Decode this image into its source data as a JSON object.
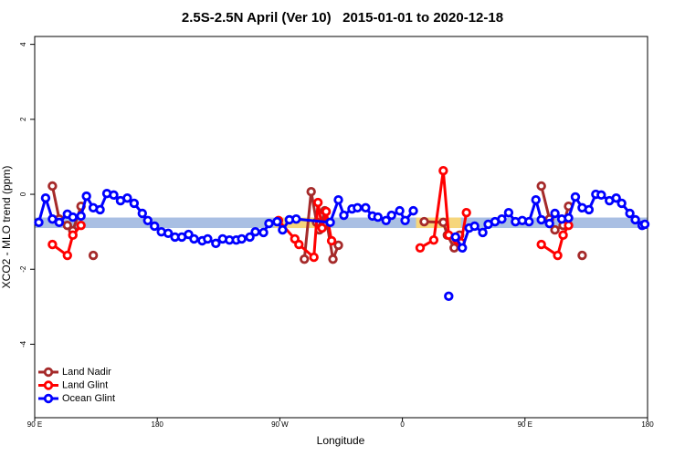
{
  "chart_data": {
    "type": "line",
    "title": "2.5S-2.5N April (Ver 10)   2015-01-01 to 2020-12-18",
    "x_label": "Longitude",
    "y_label": "XCO2 - MLO trend (ppm)",
    "xlim": [
      90,
      540
    ],
    "ylim": [
      -5.96,
      4.21
    ],
    "xticks": [
      {
        "value": 90,
        "label": "90 E"
      },
      {
        "value": 180,
        "label": "180"
      },
      {
        "value": 270,
        "label": "90 W"
      },
      {
        "value": 360,
        "label": "0"
      },
      {
        "value": 450,
        "label": "90 E"
      },
      {
        "value": 540,
        "label": "180"
      }
    ],
    "yticks": [
      -4,
      -2,
      0,
      2,
      4
    ],
    "reference_band": {
      "range": [
        -0.9,
        -0.62
      ],
      "color": "#a9bfe3"
    },
    "highlight_bands": {
      "color": "#f6d67c",
      "ranges": [
        [
          266,
          299
        ],
        [
          370,
          403
        ]
      ]
    },
    "legend": "bottom-left",
    "series": [
      {
        "name": "Land Nadir",
        "color": "#a52a2a",
        "x": [
          103,
          108,
          114,
          118,
          124,
          128,
          133,
          250,
          288,
          293,
          297,
          299,
          303,
          309,
          313,
          345,
          376,
          390,
          393,
          398,
          402,
          430,
          462,
          468,
          472,
          478,
          482,
          487,
          492
        ],
        "values": [
          0.22,
          -0.66,
          -0.83,
          -0.97,
          -0.32,
          null,
          -1.63,
          null,
          -1.73,
          0.07,
          -0.75,
          -0.95,
          -0.44,
          -1.73,
          -1.36,
          null,
          -0.73,
          -0.75,
          -1.09,
          -1.43,
          -1.09,
          null,
          0.22,
          -0.66,
          -0.95,
          -0.83,
          -0.32,
          null,
          -1.63
        ]
      },
      {
        "name": "Land Glint",
        "color": "#ff0000",
        "x": [
          103,
          114,
          118,
          124,
          200,
          269,
          281,
          284,
          295,
          298,
          301,
          304,
          308,
          340,
          373,
          383,
          390,
          394,
          400,
          403,
          407,
          430,
          462,
          474,
          478,
          482
        ],
        "values": [
          -1.34,
          -1.63,
          -1.09,
          -0.83,
          null,
          -0.7,
          -1.19,
          -1.34,
          -1.68,
          -0.22,
          -0.9,
          -0.46,
          -1.24,
          null,
          -1.43,
          -1.22,
          0.63,
          -1.09,
          -1.22,
          -1.29,
          -0.49,
          null,
          -1.34,
          -1.63,
          -1.09,
          -0.83
        ]
      },
      {
        "name": "Ocean Glint",
        "color": "#0000ff",
        "x": [
          93,
          98,
          103,
          108,
          114,
          118,
          124,
          128,
          133,
          138,
          143,
          148,
          153,
          158,
          163,
          169,
          173,
          178,
          183,
          188,
          193,
          198,
          203,
          207,
          213,
          217,
          223,
          228,
          233,
          238,
          242,
          248,
          252,
          258,
          262,
          268,
          272,
          277,
          282,
          307,
          313,
          317,
          323,
          327,
          333,
          338,
          342,
          348,
          352,
          358,
          362,
          368,
          380,
          394,
          396,
          399,
          404,
          409,
          413,
          419,
          423,
          428,
          433,
          438,
          443,
          448,
          453,
          458,
          462,
          468,
          472,
          477,
          482,
          487,
          492,
          497,
          502,
          506,
          512,
          517,
          521,
          527,
          531,
          536,
          538
        ],
        "values": [
          -0.75,
          -0.1,
          -0.66,
          -0.75,
          -0.53,
          -0.61,
          -0.58,
          -0.05,
          -0.36,
          -0.41,
          0.02,
          -0.02,
          -0.17,
          -0.1,
          -0.24,
          -0.51,
          -0.7,
          -0.85,
          -1.0,
          -1.04,
          -1.14,
          -1.14,
          -1.07,
          -1.19,
          -1.24,
          -1.19,
          -1.31,
          -1.19,
          -1.22,
          -1.22,
          -1.19,
          -1.14,
          -1.0,
          -1.02,
          -0.78,
          -0.73,
          -0.95,
          -0.68,
          -0.66,
          -0.75,
          -0.15,
          -0.56,
          -0.39,
          -0.36,
          -0.36,
          -0.58,
          -0.61,
          -0.7,
          -0.56,
          -0.44,
          -0.7,
          -0.44,
          null,
          -2.72,
          null,
          -1.14,
          -1.43,
          -0.9,
          -0.85,
          -1.02,
          -0.8,
          -0.73,
          -0.66,
          -0.49,
          -0.73,
          -0.7,
          -0.73,
          -0.15,
          -0.68,
          -0.78,
          -0.51,
          -0.66,
          -0.63,
          -0.07,
          -0.36,
          -0.41,
          0,
          -0.02,
          -0.17,
          -0.1,
          -0.24,
          -0.51,
          -0.68,
          -0.83,
          -0.8
        ]
      }
    ]
  }
}
